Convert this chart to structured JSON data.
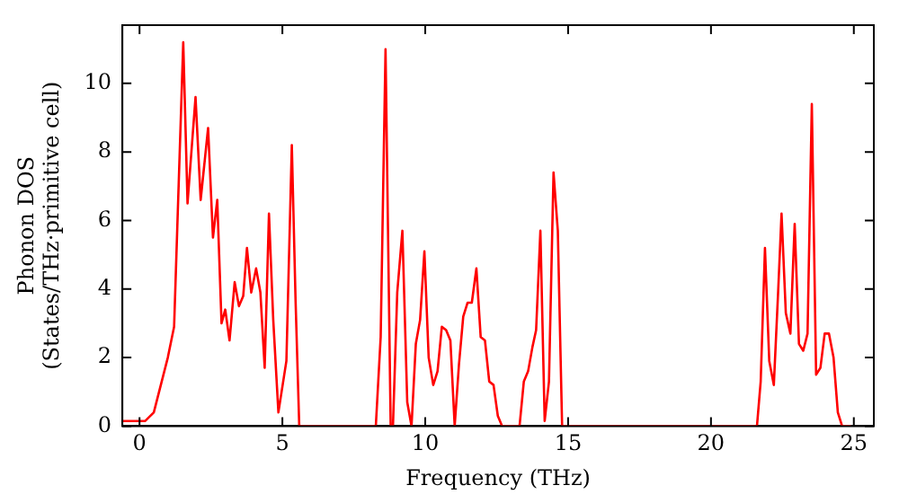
{
  "chart_data": {
    "type": "line",
    "xlabel": "Frequency (THz)",
    "ylabel": [
      "Phonon DOS",
      "(States/THz·primitive cell)"
    ],
    "xlim": [
      -0.6,
      25.7
    ],
    "ylim": [
      0,
      11.7
    ],
    "xticks": [
      0,
      5,
      10,
      15,
      20,
      25
    ],
    "yticks": [
      0,
      2,
      4,
      6,
      8,
      10
    ],
    "grid": false,
    "legend": false,
    "marker": "none",
    "line_style": "solid",
    "series": [
      {
        "color": "#ff0000",
        "x": [
          -0.6,
          0.2,
          0.5,
          0.99,
          1.21,
          1.53,
          1.68,
          1.96,
          2.14,
          2.4,
          2.57,
          2.72,
          2.87,
          3.0,
          3.15,
          3.33,
          3.48,
          3.63,
          3.76,
          3.91,
          4.08,
          4.23,
          4.38,
          4.53,
          4.68,
          4.86,
          5.14,
          5.33,
          5.46,
          5.59,
          8.27,
          8.44,
          8.61,
          8.79,
          8.87,
          9.02,
          9.2,
          9.37,
          9.52,
          9.67,
          9.82,
          9.97,
          10.12,
          10.28,
          10.43,
          10.58,
          10.73,
          10.88,
          11.03,
          11.18,
          11.33,
          11.48,
          11.63,
          11.79,
          11.94,
          12.09,
          12.24,
          12.39,
          12.54,
          12.69,
          13.3,
          13.45,
          13.6,
          13.75,
          13.88,
          14.03,
          14.18,
          14.33,
          14.49,
          14.64,
          14.79,
          21.61,
          21.74,
          21.89,
          22.04,
          22.2,
          22.35,
          22.47,
          22.62,
          22.78,
          22.93,
          23.08,
          23.23,
          23.38,
          23.53,
          23.68,
          23.83,
          23.98,
          24.13,
          24.29,
          24.44,
          24.59,
          24.9
        ],
        "values": [
          0.15,
          0.15,
          0.4,
          2.0,
          2.9,
          11.2,
          6.5,
          9.6,
          6.6,
          8.7,
          5.5,
          6.6,
          3.0,
          3.4,
          2.5,
          4.2,
          3.5,
          3.8,
          5.2,
          3.9,
          4.6,
          3.9,
          1.7,
          6.2,
          3.1,
          0.4,
          1.9,
          8.2,
          3.7,
          0,
          0,
          2.6,
          11.0,
          0,
          0,
          3.9,
          5.7,
          0.7,
          0,
          2.4,
          3.1,
          5.1,
          2.0,
          1.2,
          1.6,
          2.9,
          2.8,
          2.5,
          0,
          1.8,
          3.2,
          3.6,
          3.6,
          4.6,
          2.6,
          2.5,
          1.3,
          1.2,
          0.3,
          0,
          0,
          1.3,
          1.6,
          2.3,
          2.8,
          5.7,
          0.15,
          1.3,
          7.4,
          5.7,
          0,
          0,
          1.3,
          5.2,
          1.9,
          1.2,
          3.9,
          6.2,
          3.3,
          2.7,
          5.9,
          2.4,
          2.2,
          2.7,
          9.4,
          1.5,
          1.7,
          2.7,
          2.7,
          2.0,
          0.4,
          0,
          0
        ]
      }
    ]
  }
}
